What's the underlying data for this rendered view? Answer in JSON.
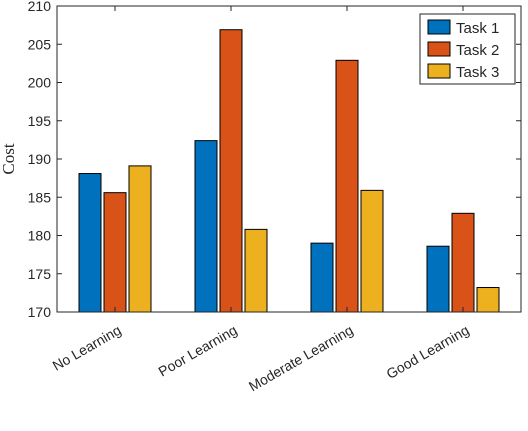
{
  "chart_data": {
    "type": "bar",
    "categories": [
      "No Learning",
      "Poor Learning",
      "Moderate Learning",
      "Good Learning"
    ],
    "series": [
      {
        "name": "Task 1",
        "color": "#0072BD",
        "values": [
          188.1,
          192.4,
          179.0,
          178.6
        ]
      },
      {
        "name": "Task 2",
        "color": "#D95319",
        "values": [
          185.6,
          206.9,
          202.9,
          182.9
        ]
      },
      {
        "name": "Task 3",
        "color": "#EDB120",
        "values": [
          189.1,
          180.8,
          185.9,
          173.2
        ]
      }
    ],
    "title": "",
    "xlabel": "",
    "ylabel": "Cost",
    "ylim": [
      170,
      210
    ],
    "yticks": [
      170,
      175,
      180,
      185,
      190,
      195,
      200,
      205,
      210
    ],
    "grid": false,
    "legend_position": "top-right"
  }
}
